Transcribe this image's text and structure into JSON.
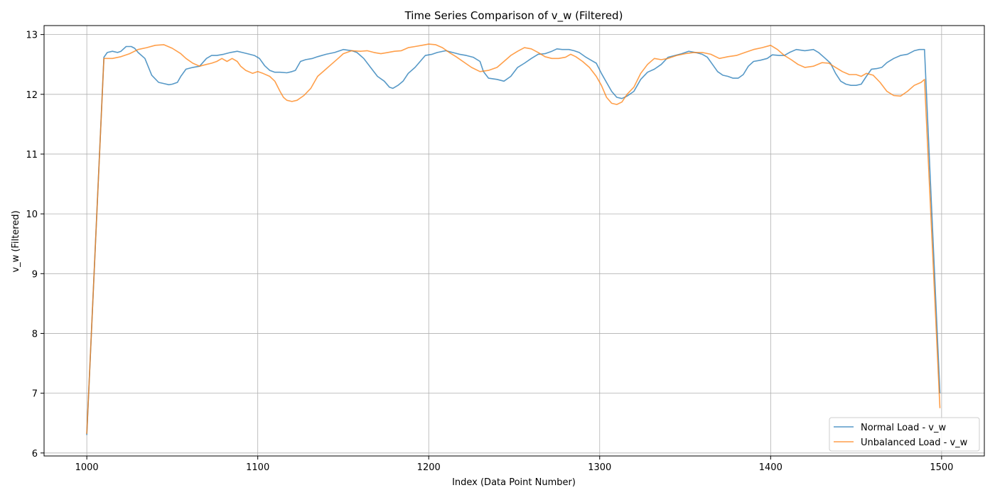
{
  "chart_data": {
    "type": "line",
    "title": "Time Series Comparison of v_w (Filtered)",
    "xlabel": "Index (Data Point Number)",
    "ylabel": "v_w (Filtered)",
    "xlim": [
      975,
      1525
    ],
    "ylim": [
      5.95,
      13.15
    ],
    "xticks": [
      1000,
      1100,
      1200,
      1300,
      1400,
      1500
    ],
    "yticks": [
      6,
      7,
      8,
      9,
      10,
      11,
      12,
      13
    ],
    "grid": true,
    "legend_position": "lower-right",
    "series": [
      {
        "name": "Normal Load - v_w",
        "color": "#1f77b4",
        "points": [
          [
            1000,
            6.3
          ],
          [
            1010,
            12.62
          ],
          [
            1012,
            12.7
          ],
          [
            1015,
            12.72
          ],
          [
            1018,
            12.7
          ],
          [
            1020,
            12.72
          ],
          [
            1023,
            12.8
          ],
          [
            1026,
            12.8
          ],
          [
            1028,
            12.77
          ],
          [
            1030,
            12.7
          ],
          [
            1034,
            12.6
          ],
          [
            1038,
            12.32
          ],
          [
            1042,
            12.2
          ],
          [
            1045,
            12.18
          ],
          [
            1048,
            12.16
          ],
          [
            1050,
            12.17
          ],
          [
            1053,
            12.2
          ],
          [
            1055,
            12.3
          ],
          [
            1058,
            12.42
          ],
          [
            1062,
            12.45
          ],
          [
            1066,
            12.47
          ],
          [
            1070,
            12.6
          ],
          [
            1073,
            12.65
          ],
          [
            1076,
            12.65
          ],
          [
            1080,
            12.67
          ],
          [
            1084,
            12.7
          ],
          [
            1088,
            12.72
          ],
          [
            1091,
            12.7
          ],
          [
            1094,
            12.68
          ],
          [
            1098,
            12.65
          ],
          [
            1101,
            12.6
          ],
          [
            1104,
            12.48
          ],
          [
            1107,
            12.4
          ],
          [
            1110,
            12.37
          ],
          [
            1113,
            12.37
          ],
          [
            1117,
            12.36
          ],
          [
            1120,
            12.38
          ],
          [
            1122,
            12.4
          ],
          [
            1125,
            12.55
          ],
          [
            1128,
            12.58
          ],
          [
            1132,
            12.6
          ],
          [
            1135,
            12.63
          ],
          [
            1140,
            12.67
          ],
          [
            1145,
            12.7
          ],
          [
            1150,
            12.75
          ],
          [
            1155,
            12.73
          ],
          [
            1158,
            12.7
          ],
          [
            1162,
            12.6
          ],
          [
            1166,
            12.45
          ],
          [
            1170,
            12.3
          ],
          [
            1174,
            12.22
          ],
          [
            1177,
            12.12
          ],
          [
            1179,
            12.1
          ],
          [
            1182,
            12.15
          ],
          [
            1185,
            12.22
          ],
          [
            1188,
            12.35
          ],
          [
            1192,
            12.45
          ],
          [
            1195,
            12.55
          ],
          [
            1198,
            12.65
          ],
          [
            1202,
            12.67
          ],
          [
            1205,
            12.7
          ],
          [
            1210,
            12.73
          ],
          [
            1214,
            12.7
          ],
          [
            1218,
            12.67
          ],
          [
            1222,
            12.65
          ],
          [
            1226,
            12.62
          ],
          [
            1230,
            12.55
          ],
          [
            1232,
            12.38
          ],
          [
            1235,
            12.27
          ],
          [
            1240,
            12.25
          ],
          [
            1244,
            12.22
          ],
          [
            1248,
            12.3
          ],
          [
            1252,
            12.45
          ],
          [
            1256,
            12.52
          ],
          [
            1260,
            12.6
          ],
          [
            1264,
            12.67
          ],
          [
            1268,
            12.68
          ],
          [
            1272,
            12.72
          ],
          [
            1275,
            12.76
          ],
          [
            1278,
            12.75
          ],
          [
            1282,
            12.75
          ],
          [
            1285,
            12.73
          ],
          [
            1288,
            12.7
          ],
          [
            1292,
            12.62
          ],
          [
            1295,
            12.57
          ],
          [
            1298,
            12.52
          ],
          [
            1301,
            12.35
          ],
          [
            1304,
            12.2
          ],
          [
            1307,
            12.05
          ],
          [
            1310,
            11.95
          ],
          [
            1313,
            11.93
          ],
          [
            1316,
            11.97
          ],
          [
            1320,
            12.05
          ],
          [
            1324,
            12.25
          ],
          [
            1328,
            12.37
          ],
          [
            1332,
            12.42
          ],
          [
            1336,
            12.5
          ],
          [
            1340,
            12.62
          ],
          [
            1344,
            12.65
          ],
          [
            1348,
            12.68
          ],
          [
            1352,
            12.72
          ],
          [
            1356,
            12.7
          ],
          [
            1360,
            12.67
          ],
          [
            1363,
            12.62
          ],
          [
            1366,
            12.5
          ],
          [
            1369,
            12.38
          ],
          [
            1372,
            12.32
          ],
          [
            1375,
            12.3
          ],
          [
            1378,
            12.27
          ],
          [
            1381,
            12.27
          ],
          [
            1384,
            12.33
          ],
          [
            1387,
            12.47
          ],
          [
            1390,
            12.55
          ],
          [
            1394,
            12.57
          ],
          [
            1398,
            12.6
          ],
          [
            1401,
            12.66
          ],
          [
            1405,
            12.65
          ],
          [
            1408,
            12.65
          ],
          [
            1411,
            12.7
          ],
          [
            1415,
            12.75
          ],
          [
            1420,
            12.73
          ],
          [
            1425,
            12.75
          ],
          [
            1428,
            12.7
          ],
          [
            1432,
            12.6
          ],
          [
            1435,
            12.52
          ],
          [
            1438,
            12.35
          ],
          [
            1441,
            12.22
          ],
          [
            1444,
            12.17
          ],
          [
            1447,
            12.15
          ],
          [
            1450,
            12.15
          ],
          [
            1453,
            12.17
          ],
          [
            1456,
            12.3
          ],
          [
            1459,
            12.42
          ],
          [
            1462,
            12.43
          ],
          [
            1465,
            12.45
          ],
          [
            1468,
            12.53
          ],
          [
            1472,
            12.6
          ],
          [
            1476,
            12.65
          ],
          [
            1480,
            12.67
          ],
          [
            1484,
            12.73
          ],
          [
            1487,
            12.75
          ],
          [
            1490,
            12.75
          ],
          [
            1499,
            7.0
          ]
        ]
      },
      {
        "name": "Unbalanced Load - v_w",
        "color": "#ff7f0e",
        "points": [
          [
            1000,
            6.32
          ],
          [
            1010,
            12.6
          ],
          [
            1015,
            12.6
          ],
          [
            1020,
            12.63
          ],
          [
            1025,
            12.68
          ],
          [
            1030,
            12.75
          ],
          [
            1035,
            12.78
          ],
          [
            1040,
            12.82
          ],
          [
            1045,
            12.83
          ],
          [
            1050,
            12.77
          ],
          [
            1055,
            12.68
          ],
          [
            1058,
            12.6
          ],
          [
            1062,
            12.52
          ],
          [
            1066,
            12.47
          ],
          [
            1070,
            12.5
          ],
          [
            1073,
            12.52
          ],
          [
            1076,
            12.55
          ],
          [
            1079,
            12.6
          ],
          [
            1082,
            12.55
          ],
          [
            1085,
            12.6
          ],
          [
            1088,
            12.55
          ],
          [
            1090,
            12.47
          ],
          [
            1093,
            12.4
          ],
          [
            1097,
            12.35
          ],
          [
            1100,
            12.38
          ],
          [
            1103,
            12.35
          ],
          [
            1107,
            12.3
          ],
          [
            1110,
            12.22
          ],
          [
            1113,
            12.05
          ],
          [
            1115,
            11.95
          ],
          [
            1117,
            11.9
          ],
          [
            1120,
            11.88
          ],
          [
            1123,
            11.9
          ],
          [
            1127,
            11.98
          ],
          [
            1131,
            12.1
          ],
          [
            1135,
            12.3
          ],
          [
            1139,
            12.4
          ],
          [
            1143,
            12.5
          ],
          [
            1147,
            12.6
          ],
          [
            1150,
            12.68
          ],
          [
            1155,
            12.73
          ],
          [
            1160,
            12.72
          ],
          [
            1164,
            12.73
          ],
          [
            1168,
            12.7
          ],
          [
            1172,
            12.68
          ],
          [
            1176,
            12.7
          ],
          [
            1180,
            12.72
          ],
          [
            1184,
            12.73
          ],
          [
            1188,
            12.78
          ],
          [
            1192,
            12.8
          ],
          [
            1196,
            12.82
          ],
          [
            1200,
            12.84
          ],
          [
            1204,
            12.83
          ],
          [
            1208,
            12.78
          ],
          [
            1212,
            12.7
          ],
          [
            1216,
            12.63
          ],
          [
            1220,
            12.55
          ],
          [
            1225,
            12.45
          ],
          [
            1230,
            12.38
          ],
          [
            1235,
            12.4
          ],
          [
            1240,
            12.45
          ],
          [
            1244,
            12.55
          ],
          [
            1248,
            12.65
          ],
          [
            1252,
            12.72
          ],
          [
            1256,
            12.78
          ],
          [
            1260,
            12.76
          ],
          [
            1264,
            12.7
          ],
          [
            1268,
            12.63
          ],
          [
            1272,
            12.6
          ],
          [
            1276,
            12.6
          ],
          [
            1280,
            12.62
          ],
          [
            1283,
            12.67
          ],
          [
            1286,
            12.63
          ],
          [
            1290,
            12.55
          ],
          [
            1294,
            12.45
          ],
          [
            1298,
            12.3
          ],
          [
            1301,
            12.15
          ],
          [
            1304,
            11.95
          ],
          [
            1307,
            11.85
          ],
          [
            1310,
            11.83
          ],
          [
            1313,
            11.87
          ],
          [
            1316,
            12.0
          ],
          [
            1320,
            12.12
          ],
          [
            1324,
            12.35
          ],
          [
            1328,
            12.5
          ],
          [
            1332,
            12.6
          ],
          [
            1336,
            12.58
          ],
          [
            1340,
            12.6
          ],
          [
            1345,
            12.65
          ],
          [
            1350,
            12.68
          ],
          [
            1355,
            12.7
          ],
          [
            1360,
            12.7
          ],
          [
            1365,
            12.67
          ],
          [
            1370,
            12.6
          ],
          [
            1375,
            12.63
          ],
          [
            1380,
            12.65
          ],
          [
            1385,
            12.7
          ],
          [
            1390,
            12.75
          ],
          [
            1395,
            12.78
          ],
          [
            1400,
            12.82
          ],
          [
            1404,
            12.75
          ],
          [
            1408,
            12.65
          ],
          [
            1412,
            12.58
          ],
          [
            1416,
            12.5
          ],
          [
            1420,
            12.45
          ],
          [
            1425,
            12.47
          ],
          [
            1430,
            12.53
          ],
          [
            1434,
            12.52
          ],
          [
            1438,
            12.45
          ],
          [
            1442,
            12.38
          ],
          [
            1446,
            12.33
          ],
          [
            1450,
            12.33
          ],
          [
            1453,
            12.3
          ],
          [
            1456,
            12.35
          ],
          [
            1460,
            12.32
          ],
          [
            1464,
            12.2
          ],
          [
            1468,
            12.05
          ],
          [
            1472,
            11.98
          ],
          [
            1476,
            11.97
          ],
          [
            1480,
            12.05
          ],
          [
            1484,
            12.15
          ],
          [
            1488,
            12.2
          ],
          [
            1490,
            12.25
          ],
          [
            1499,
            6.75
          ]
        ]
      }
    ]
  }
}
